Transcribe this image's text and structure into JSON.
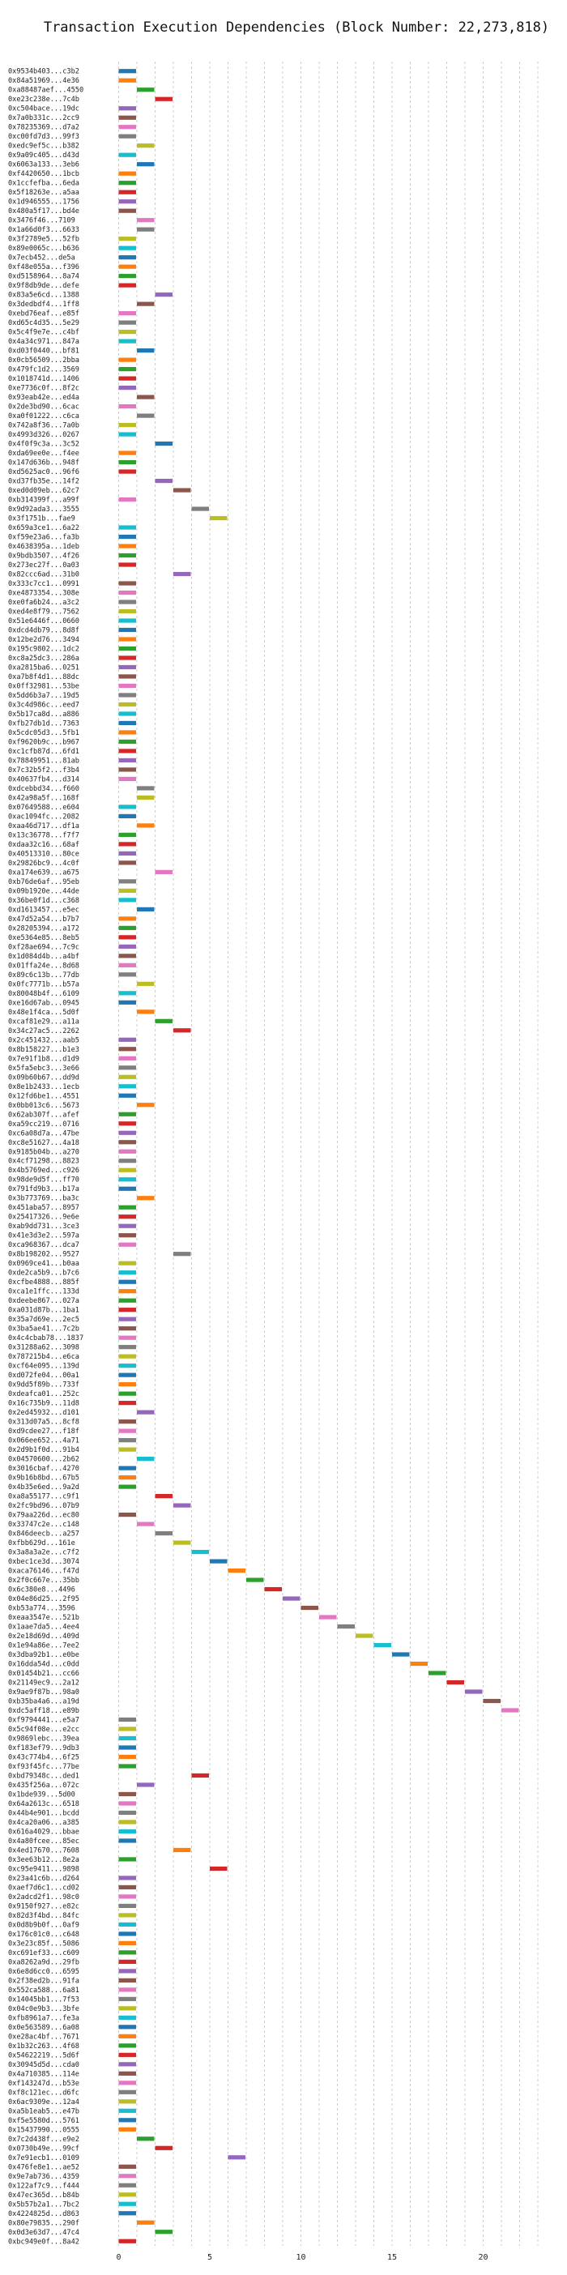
{
  "chart_data": {
    "type": "bar",
    "orientation": "horizontal-gantt",
    "title": "Transaction Execution Dependencies (Block Number: 22,273,818)",
    "xlabel": "",
    "ylabel": "",
    "xlim": [
      0,
      24
    ],
    "xticks": [
      0,
      5,
      10,
      15,
      20
    ],
    "grid": "vertical dashed",
    "palette": [
      "#1f77b4",
      "#ff7f0e",
      "#2ca02c",
      "#d62728",
      "#9467bd",
      "#8c564b",
      "#e377c2",
      "#7f7f7f",
      "#bcbd22",
      "#17becf"
    ],
    "transactions": [
      [
        "0x9534b403...c3b2",
        0,
        0
      ],
      [
        "0x84a51969...4e36",
        0,
        1
      ],
      [
        "0xa88487aef...4550",
        1,
        2
      ],
      [
        "0xe23c238e...7c4b",
        2,
        3
      ],
      [
        "0xc504bace...19dc",
        0,
        4
      ],
      [
        "0x7a0b331c...2cc9",
        0,
        5
      ],
      [
        "0x78235369...d7a2",
        0,
        6
      ],
      [
        "0xc00fd7d3...99f3",
        0,
        7
      ],
      [
        "0xedc9ef5c...b382",
        1,
        8
      ],
      [
        "0x9a09c405...d43d",
        0,
        9
      ],
      [
        "0x6063a133...3eb6",
        1,
        0
      ],
      [
        "0xf4420650...1bcb",
        0,
        1
      ],
      [
        "0x1ccfefba...6eda",
        0,
        2
      ],
      [
        "0x5f18263e...a5aa",
        0,
        3
      ],
      [
        "0x1d946555...1756",
        0,
        4
      ],
      [
        "0x480a5f17...bd4e",
        0,
        5
      ],
      [
        "0x3476f46...7109",
        1,
        6
      ],
      [
        "0x1a66d0f3...6633",
        1,
        7
      ],
      [
        "0x3f2789e5...52fb",
        0,
        8
      ],
      [
        "0x89e0065c...b636",
        0,
        9
      ],
      [
        "0x7ecb452...de5a",
        0,
        0
      ],
      [
        "0xf48e055a...f396",
        0,
        1
      ],
      [
        "0xd5158964...8a74",
        0,
        2
      ],
      [
        "0x9f8db9de...defe",
        0,
        3
      ],
      [
        "0x83a5e6cd...1388",
        2,
        4
      ],
      [
        "0x3dedbdf4...1ff8",
        1,
        5
      ],
      [
        "0xebd76eaf...e85f",
        0,
        6
      ],
      [
        "0xd65c4d35...5e29",
        0,
        7
      ],
      [
        "0x5c4f9e7e...c4bf",
        0,
        8
      ],
      [
        "0x4a34c971...847a",
        0,
        9
      ],
      [
        "0xd03f0440...bf81",
        1,
        0
      ],
      [
        "0x0cb56509...2bba",
        0,
        1
      ],
      [
        "0x479fc1d2...3569",
        0,
        2
      ],
      [
        "0x1018741d...1406",
        0,
        3
      ],
      [
        "0xe7736c0f...8f2c",
        0,
        4
      ],
      [
        "0x93eab42e...ed4a",
        1,
        5
      ],
      [
        "0x2de3bd90...6cac",
        0,
        6
      ],
      [
        "0xa0f01222...c6ca",
        1,
        7
      ],
      [
        "0x742a8f36...7a0b",
        0,
        8
      ],
      [
        "0x4993d326...0267",
        0,
        9
      ],
      [
        "0x4f0f9c3a...3c52",
        2,
        0
      ],
      [
        "0xda69ee0e...f4ee",
        0,
        1
      ],
      [
        "0x147d636b...948f",
        0,
        2
      ],
      [
        "0xd5625ac0...96f6",
        0,
        3
      ],
      [
        "0xd37fb35e...14f2",
        2,
        4
      ],
      [
        "0xed0d09eb...62c7",
        3,
        5
      ],
      [
        "0xb314399f...a99f",
        0,
        6
      ],
      [
        "0x9d92ada3...3555",
        4,
        7
      ],
      [
        "0x3f1751b...fae9",
        5,
        8
      ],
      [
        "0x659a3ce1...6a22",
        0,
        9
      ],
      [
        "0xf59e23a6...fa3b",
        0,
        0
      ],
      [
        "0x4638395a...1deb",
        0,
        1
      ],
      [
        "0x9bdb3507...4f26",
        0,
        2
      ],
      [
        "0x273ec27f...0a03",
        0,
        3
      ],
      [
        "0x82ccc6ad...31b0",
        3,
        4
      ],
      [
        "0x333c7cc1...0991",
        0,
        5
      ],
      [
        "0xe4873354...308e",
        0,
        6
      ],
      [
        "0xe0fa6b24...a3c2",
        0,
        7
      ],
      [
        "0xed4e8f79...7562",
        0,
        8
      ],
      [
        "0x51e6446f...0660",
        0,
        9
      ],
      [
        "0xdcd4db79...8d8f",
        0,
        0
      ],
      [
        "0x12be2d76...3494",
        0,
        1
      ],
      [
        "0x195c9802...1dc2",
        0,
        2
      ],
      [
        "0xc8a25dc3...286a",
        0,
        3
      ],
      [
        "0xa2815ba6...0251",
        0,
        4
      ],
      [
        "0xa7b8f4d1...88dc",
        0,
        5
      ],
      [
        "0x0ff32981...53be",
        0,
        6
      ],
      [
        "0x5dd6b3a7...19d5",
        0,
        7
      ],
      [
        "0x3c4d986c...eed7",
        0,
        8
      ],
      [
        "0x5b17ca8d...a886",
        0,
        9
      ],
      [
        "0xfb27db1d...7363",
        0,
        0
      ],
      [
        "0x5cdc05d3...5fb1",
        0,
        1
      ],
      [
        "0xf9620b9c...b967",
        0,
        2
      ],
      [
        "0xc1cfb87d...6fd1",
        0,
        3
      ],
      [
        "0x78849951...81ab",
        0,
        4
      ],
      [
        "0x7c32b5f2...f3b4",
        0,
        5
      ],
      [
        "0x40637fb4...d314",
        0,
        6
      ],
      [
        "0xdcebbd34...f660",
        1,
        7
      ],
      [
        "0x42a98a5f...168f",
        1,
        8
      ],
      [
        "0x07649588...e604",
        0,
        9
      ],
      [
        "0xac1094fc...2082",
        0,
        0
      ],
      [
        "0xaa46d717...df1a",
        1,
        1
      ],
      [
        "0x13c36778...f7f7",
        0,
        2
      ],
      [
        "0xdaa32c16...68af",
        0,
        3
      ],
      [
        "0x40513310...80ce",
        0,
        4
      ],
      [
        "0x29826bc9...4c0f",
        0,
        5
      ],
      [
        "0xa174e639...a675",
        2,
        6
      ],
      [
        "0xb76de6af...95eb",
        0,
        7
      ],
      [
        "0x09b1920e...44de",
        0,
        8
      ],
      [
        "0x36be0f1d...c368",
        0,
        9
      ],
      [
        "0xd1613457...e5ec",
        1,
        0
      ],
      [
        "0x47d52a54...b7b7",
        0,
        1
      ],
      [
        "0x28205394...a172",
        0,
        2
      ],
      [
        "0xe5364e85...8eb5",
        0,
        3
      ],
      [
        "0xf28ae694...7c9c",
        0,
        4
      ],
      [
        "0x1d084d4b...a4bf",
        0,
        5
      ],
      [
        "0x01ffa24e...8d68",
        0,
        6
      ],
      [
        "0x89c6c13b...77db",
        0,
        7
      ],
      [
        "0x0fc7771b...b57a",
        1,
        8
      ],
      [
        "0x80048b4f...6109",
        0,
        9
      ],
      [
        "0xe16d67ab...0945",
        0,
        0
      ],
      [
        "0x48e1f4ca...5d0f",
        1,
        1
      ],
      [
        "0xcaf81e29...a11a",
        2,
        2
      ],
      [
        "0x34c27ac5...2262",
        3,
        3
      ],
      [
        "0x2c451432...aab5",
        0,
        4
      ],
      [
        "0x8b158227...b1e3",
        0,
        5
      ],
      [
        "0x7e91f1b8...d1d9",
        0,
        6
      ],
      [
        "0x5fa5ebc3...3e66",
        0,
        7
      ],
      [
        "0x09b60b67...dd9d",
        0,
        8
      ],
      [
        "0x8e1b2433...1ecb",
        0,
        9
      ],
      [
        "0x12fd6be1...4551",
        0,
        0
      ],
      [
        "0x0bb013c6...5673",
        1,
        1
      ],
      [
        "0x62ab307f...afef",
        0,
        2
      ],
      [
        "0xa59cc219...0716",
        0,
        3
      ],
      [
        "0xc6a08d7a...47be",
        0,
        4
      ],
      [
        "0xc8e51627...4a18",
        0,
        5
      ],
      [
        "0x9185b04b...a270",
        0,
        6
      ],
      [
        "0x4cf71298...8823",
        0,
        7
      ],
      [
        "0x4b5769ed...c926",
        0,
        8
      ],
      [
        "0x98de9d5f...ff70",
        0,
        9
      ],
      [
        "0x791fd9b3...b17a",
        0,
        0
      ],
      [
        "0x3b773769...ba3c",
        1,
        1
      ],
      [
        "0x451aba57...8957",
        0,
        2
      ],
      [
        "0x25417326...9e6e",
        0,
        3
      ],
      [
        "0xab9dd731...3ce3",
        0,
        4
      ],
      [
        "0x41e3d3e2...597a",
        0,
        5
      ],
      [
        "0xca968367...dca7",
        0,
        6
      ],
      [
        "0x8b198202...9527",
        3,
        7
      ],
      [
        "0x0969ce41...b0aa",
        0,
        8
      ],
      [
        "0xde2ca5b9...b7c6",
        0,
        9
      ],
      [
        "0xcfbe4888...885f",
        0,
        0
      ],
      [
        "0xca1e1ffc...133d",
        0,
        1
      ],
      [
        "0xdeebe867...027a",
        0,
        2
      ],
      [
        "0xa031d87b...1ba1",
        0,
        3
      ],
      [
        "0x35a7d69e...2ec5",
        0,
        4
      ],
      [
        "0x3ba5ae41...7c2b",
        0,
        5
      ],
      [
        "0x4c4cbab78...1837",
        0,
        6
      ],
      [
        "0x31288a62...3098",
        0,
        7
      ],
      [
        "0x787215b4...e6ca",
        0,
        8
      ],
      [
        "0xcf64e095...139d",
        0,
        9
      ],
      [
        "0xd072fe04...00a1",
        0,
        0
      ],
      [
        "0x9dd5f89b...733f",
        0,
        1
      ],
      [
        "0xdeafca01...252c",
        0,
        2
      ],
      [
        "0x16c735b9...11d8",
        0,
        3
      ],
      [
        "0x2ed45932...d101",
        1,
        4
      ],
      [
        "0x313d07a5...8cf8",
        0,
        5
      ],
      [
        "0xd9cdee27...f18f",
        0,
        6
      ],
      [
        "0x066ee652...4a71",
        0,
        7
      ],
      [
        "0x2d9b1f0d...91b4",
        0,
        8
      ],
      [
        "0x04570600...2b62",
        1,
        9
      ],
      [
        "0x3016cbaf...4270",
        0,
        0
      ],
      [
        "0x9b16b8bd...67b5",
        0,
        1
      ],
      [
        "0x4b35e6ed...9a2d",
        0,
        2
      ],
      [
        "0xa8a55177...c9f1",
        2,
        3
      ],
      [
        "0x2fc9bd96...07b9",
        3,
        4
      ],
      [
        "0x79aa226d...ec80",
        0,
        5
      ],
      [
        "0x33747c2e...c148",
        1,
        6
      ],
      [
        "0x846deecb...a257",
        2,
        7
      ],
      [
        "0xfbb629d...161e",
        3,
        8
      ],
      [
        "0x3a8a3a2e...c7f2",
        4,
        9
      ],
      [
        "0xbec1ce3d...3074",
        5,
        0
      ],
      [
        "0xaca76146...f47d",
        6,
        1
      ],
      [
        "0x2f0c667e...35bb",
        7,
        2
      ],
      [
        "0x6c380e8...4496",
        8,
        3
      ],
      [
        "0x04e86d25...2f95",
        9,
        4
      ],
      [
        "0xb53a774...3596",
        10,
        5
      ],
      [
        "0xeaa3547e...521b",
        11,
        6
      ],
      [
        "0x1aae7da5...4ee4",
        12,
        7
      ],
      [
        "0x2e18d69d...409d",
        13,
        8
      ],
      [
        "0x1e94a86e...7ee2",
        14,
        9
      ],
      [
        "0x3dba92b1...e0be",
        15,
        0
      ],
      [
        "0x16dda54d...c0dd",
        16,
        1
      ],
      [
        "0x01454b21...cc66",
        17,
        2
      ],
      [
        "0x21149ec9...2a12",
        18,
        3
      ],
      [
        "0x9ae9f87b...98a0",
        19,
        4
      ],
      [
        "0xb35ba4a6...a19d",
        20,
        5
      ],
      [
        "0xdc5aff18...e89b",
        21,
        6
      ],
      [
        "0xf9794441...e5a7",
        0,
        7
      ],
      [
        "0x5c94f08e...e2cc",
        0,
        8
      ],
      [
        "0x9869lebc...39ea",
        0,
        9
      ],
      [
        "0xf183ef79...9db3",
        0,
        0
      ],
      [
        "0x43c774b4...6f25",
        0,
        1
      ],
      [
        "0xf93f45fc...77be",
        0,
        2
      ],
      [
        "0xbd79348c...ded1",
        4,
        3
      ],
      [
        "0x435f256a...072c",
        1,
        4
      ],
      [
        "0x1bde939...5d00",
        0,
        5
      ],
      [
        "0x64a2613c...6518",
        0,
        6
      ],
      [
        "0x44b4e901...bcdd",
        0,
        7
      ],
      [
        "0x4ca20a06...a385",
        0,
        8
      ],
      [
        "0x616a4029...bbae",
        0,
        9
      ],
      [
        "0x4a80fcee...85ec",
        0,
        0
      ],
      [
        "0x4ed17670...7608",
        3,
        1
      ],
      [
        "0x3ee63b12...8e2a",
        0,
        2
      ],
      [
        "0xc95e9411...9898",
        5,
        3
      ],
      [
        "0x23a41c6b...d264",
        0,
        4
      ],
      [
        "0xaef7d6c1...cd02",
        0,
        5
      ],
      [
        "0x2adcd2f1...98c0",
        0,
        6
      ],
      [
        "0x9150f927...e82c",
        0,
        7
      ],
      [
        "0x82d3f4bd...84fc",
        0,
        8
      ],
      [
        "0x0d8b9b0f...0af9",
        0,
        9
      ],
      [
        "0x176c01c0...c648",
        0,
        0
      ],
      [
        "0x3e23c85f...5086",
        0,
        1
      ],
      [
        "0xc691ef33...c609",
        0,
        2
      ],
      [
        "0xa8262a9d...29fb",
        0,
        3
      ],
      [
        "0x6e8d6cc0...6595",
        0,
        4
      ],
      [
        "0x2f38ed2b...91fa",
        0,
        5
      ],
      [
        "0x552ca588...6a81",
        0,
        6
      ],
      [
        "0x14045bb1...7f53",
        0,
        7
      ],
      [
        "0x04c0e9b3...3bfe",
        0,
        8
      ],
      [
        "0xfb8961a7...fe3a",
        0,
        9
      ],
      [
        "0x0e563589...6a08",
        0,
        0
      ],
      [
        "0xe28ac4bf...7671",
        0,
        1
      ],
      [
        "0x1b32c263...4f68",
        0,
        2
      ],
      [
        "0x54622219...5d6f",
        0,
        3
      ],
      [
        "0x30945d5d...cda0",
        0,
        4
      ],
      [
        "0x4a710385...114e",
        0,
        5
      ],
      [
        "0xf143247d...b53e",
        0,
        6
      ],
      [
        "0xf8c121ec...d6fc",
        0,
        7
      ],
      [
        "0x6ac9309e...12a4",
        0,
        8
      ],
      [
        "0xa5b1eab5...e47b",
        0,
        9
      ],
      [
        "0xf5e5580d...5761",
        0,
        0
      ],
      [
        "0x15437990...0555",
        0,
        1
      ],
      [
        "0x7c2d438f...e9e2",
        1,
        2
      ],
      [
        "0x0730b49e...99cf",
        2,
        3
      ],
      [
        "0x7e91ecb1...0109",
        6,
        4
      ],
      [
        "0x476fe8e1...ae52",
        0,
        5
      ],
      [
        "0x9e7ab736...4359",
        0,
        6
      ],
      [
        "0x122af7c9...f444",
        0,
        7
      ],
      [
        "0x47ec365d...b84b",
        0,
        8
      ],
      [
        "0x5b57b2a1...7bc2",
        0,
        9
      ],
      [
        "0x4224825d...d863",
        0,
        0
      ],
      [
        "0x80e79835...290f",
        1,
        1
      ],
      [
        "0x0d3e63d7...47c4",
        2,
        2
      ],
      [
        "0xbc949e0f...8a42",
        0,
        3
      ]
    ]
  }
}
